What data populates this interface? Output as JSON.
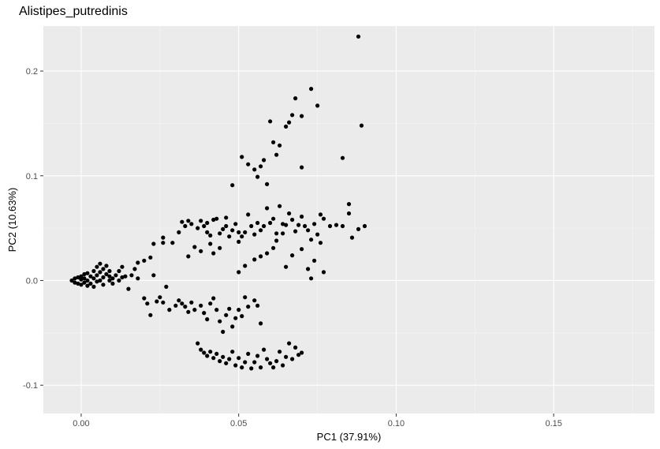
{
  "chart_data": {
    "type": "scatter",
    "title": "Alistipes_putredinis",
    "xlabel": "PC1 (37.91%)",
    "ylabel": "PC2 (10.63%)",
    "xlim": [
      -0.012,
      0.182
    ],
    "ylim": [
      -0.127,
      0.243
    ],
    "x_ticks": [
      0.0,
      0.05,
      0.1,
      0.15
    ],
    "x_tick_labels": [
      "0.00",
      "0.05",
      "0.10",
      "0.15"
    ],
    "y_ticks": [
      -0.1,
      0.0,
      0.1,
      0.2
    ],
    "y_tick_labels": [
      "-0.1",
      "0.0",
      "0.1",
      "0.2"
    ],
    "grid": true,
    "colors": {
      "panel": "#ebebeb",
      "grid_major": "#ffffff",
      "grid_minor": "#f5f5f5",
      "points": "#000000"
    },
    "series": [
      {
        "values": [
          [
            -0.003,
            0.0
          ],
          [
            -0.002,
            0.002
          ],
          [
            -0.002,
            -0.002
          ],
          [
            -0.001,
            0.003
          ],
          [
            -0.001,
            -0.003
          ],
          [
            0.0,
            0.004
          ],
          [
            0.0,
            -0.004
          ],
          [
            0.0,
            0.001
          ],
          [
            0.001,
            0.006
          ],
          [
            0.001,
            -0.002
          ],
          [
            0.001,
            0.002
          ],
          [
            0.002,
            0.007
          ],
          [
            0.002,
            -0.005
          ],
          [
            0.002,
            0.0
          ],
          [
            0.003,
            0.004
          ],
          [
            0.003,
            -0.003
          ],
          [
            0.004,
            0.009
          ],
          [
            0.004,
            0.002
          ],
          [
            0.004,
            -0.006
          ],
          [
            0.005,
            0.013
          ],
          [
            0.005,
            0.005
          ],
          [
            0.005,
            -0.001
          ],
          [
            0.006,
            0.016
          ],
          [
            0.006,
            0.008
          ],
          [
            0.006,
            0.0
          ],
          [
            0.007,
            0.011
          ],
          [
            0.007,
            0.003
          ],
          [
            0.007,
            -0.004
          ],
          [
            0.008,
            0.014
          ],
          [
            0.008,
            0.006
          ],
          [
            0.009,
            0.004
          ],
          [
            0.009,
            0.009
          ],
          [
            0.009,
            0.0
          ],
          [
            0.01,
            -0.003
          ],
          [
            0.01,
            0.002
          ],
          [
            0.011,
            0.005
          ],
          [
            0.012,
            0.0
          ],
          [
            0.012,
            0.009
          ],
          [
            0.013,
            0.003
          ],
          [
            0.013,
            0.013
          ],
          [
            0.014,
            0.004
          ],
          [
            0.015,
            -0.008
          ],
          [
            0.016,
            0.005
          ],
          [
            0.017,
            0.011
          ],
          [
            0.018,
            0.017
          ],
          [
            0.018,
            0.002
          ],
          [
            0.02,
            0.019
          ],
          [
            0.022,
            0.022
          ],
          [
            0.023,
            0.035
          ],
          [
            0.023,
            0.005
          ],
          [
            0.026,
            0.036
          ],
          [
            0.026,
            0.041
          ],
          [
            0.027,
            -0.006
          ],
          [
            0.029,
            0.036
          ],
          [
            0.031,
            0.046
          ],
          [
            0.032,
            0.056
          ],
          [
            0.033,
            0.052
          ],
          [
            0.034,
            0.057
          ],
          [
            0.034,
            0.023
          ],
          [
            0.035,
            0.054
          ],
          [
            0.036,
            0.032
          ],
          [
            0.037,
            0.05
          ],
          [
            0.038,
            0.057
          ],
          [
            0.038,
            0.028
          ],
          [
            0.039,
            0.052
          ],
          [
            0.04,
            0.055
          ],
          [
            0.04,
            0.046
          ],
          [
            0.041,
            0.043
          ],
          [
            0.041,
            0.035
          ],
          [
            0.042,
            0.058
          ],
          [
            0.042,
            0.026
          ],
          [
            0.043,
            0.059
          ],
          [
            0.044,
            0.045
          ],
          [
            0.044,
            0.031
          ],
          [
            0.045,
            0.049
          ],
          [
            0.046,
            0.052
          ],
          [
            0.046,
            0.06
          ],
          [
            0.047,
            0.042
          ],
          [
            0.048,
            0.048
          ],
          [
            0.049,
            0.054
          ],
          [
            0.05,
            0.037
          ],
          [
            0.05,
            0.046
          ],
          [
            0.051,
            0.042
          ],
          [
            0.052,
            0.046
          ],
          [
            0.053,
            0.063
          ],
          [
            0.054,
            0.052
          ],
          [
            0.055,
            0.044
          ],
          [
            0.056,
            0.055
          ],
          [
            0.057,
            0.048
          ],
          [
            0.058,
            0.052
          ],
          [
            0.059,
            0.069
          ],
          [
            0.06,
            0.055
          ],
          [
            0.061,
            0.059
          ],
          [
            0.062,
            0.045
          ],
          [
            0.063,
            0.071
          ],
          [
            0.064,
            0.054
          ],
          [
            0.065,
            0.053
          ],
          [
            0.066,
            0.064
          ],
          [
            0.067,
            0.058
          ],
          [
            0.068,
            0.047
          ],
          [
            0.069,
            0.053
          ],
          [
            0.07,
            0.061
          ],
          [
            0.071,
            0.052
          ],
          [
            0.072,
            0.048
          ],
          [
            0.073,
            0.039
          ],
          [
            0.074,
            0.054
          ],
          [
            0.075,
            0.044
          ],
          [
            0.076,
            0.063
          ],
          [
            0.077,
            0.059
          ],
          [
            0.079,
            0.052
          ],
          [
            0.081,
            0.053
          ],
          [
            0.083,
            0.052
          ],
          [
            0.085,
            0.064
          ],
          [
            0.086,
            0.041
          ],
          [
            0.088,
            0.049
          ],
          [
            0.09,
            0.052
          ],
          [
            0.02,
            -0.017
          ],
          [
            0.021,
            -0.022
          ],
          [
            0.022,
            -0.033
          ],
          [
            0.024,
            -0.02
          ],
          [
            0.025,
            -0.016
          ],
          [
            0.026,
            -0.021
          ],
          [
            0.028,
            -0.028
          ],
          [
            0.03,
            -0.024
          ],
          [
            0.031,
            -0.019
          ],
          [
            0.032,
            -0.022
          ],
          [
            0.033,
            -0.025
          ],
          [
            0.034,
            -0.03
          ],
          [
            0.035,
            -0.021
          ],
          [
            0.036,
            -0.028
          ],
          [
            0.038,
            -0.024
          ],
          [
            0.039,
            -0.031
          ],
          [
            0.04,
            -0.037
          ],
          [
            0.041,
            -0.022
          ],
          [
            0.042,
            -0.017
          ],
          [
            0.043,
            -0.028
          ],
          [
            0.044,
            -0.039
          ],
          [
            0.045,
            -0.049
          ],
          [
            0.046,
            -0.033
          ],
          [
            0.047,
            -0.027
          ],
          [
            0.048,
            -0.044
          ],
          [
            0.049,
            -0.036
          ],
          [
            0.05,
            -0.028
          ],
          [
            0.051,
            -0.034
          ],
          [
            0.052,
            -0.016
          ],
          [
            0.053,
            -0.025
          ],
          [
            0.055,
            -0.019
          ],
          [
            0.056,
            -0.024
          ],
          [
            0.057,
            -0.041
          ],
          [
            0.037,
            -0.06
          ],
          [
            0.038,
            -0.066
          ],
          [
            0.039,
            -0.069
          ],
          [
            0.04,
            -0.072
          ],
          [
            0.041,
            -0.068
          ],
          [
            0.042,
            -0.074
          ],
          [
            0.043,
            -0.07
          ],
          [
            0.044,
            -0.077
          ],
          [
            0.045,
            -0.073
          ],
          [
            0.046,
            -0.079
          ],
          [
            0.047,
            -0.075
          ],
          [
            0.048,
            -0.068
          ],
          [
            0.049,
            -0.081
          ],
          [
            0.05,
            -0.074
          ],
          [
            0.051,
            -0.083
          ],
          [
            0.052,
            -0.078
          ],
          [
            0.053,
            -0.07
          ],
          [
            0.054,
            -0.084
          ],
          [
            0.055,
            -0.078
          ],
          [
            0.056,
            -0.072
          ],
          [
            0.057,
            -0.083
          ],
          [
            0.058,
            -0.066
          ],
          [
            0.059,
            -0.075
          ],
          [
            0.06,
            -0.079
          ],
          [
            0.061,
            -0.083
          ],
          [
            0.062,
            -0.077
          ],
          [
            0.063,
            -0.068
          ],
          [
            0.064,
            -0.081
          ],
          [
            0.065,
            -0.073
          ],
          [
            0.066,
            -0.06
          ],
          [
            0.067,
            -0.075
          ],
          [
            0.068,
            -0.064
          ],
          [
            0.069,
            -0.071
          ],
          [
            0.07,
            -0.069
          ],
          [
            0.05,
            0.008
          ],
          [
            0.052,
            0.014
          ],
          [
            0.055,
            0.02
          ],
          [
            0.057,
            0.023
          ],
          [
            0.059,
            0.026
          ],
          [
            0.061,
            0.031
          ],
          [
            0.062,
            0.038
          ],
          [
            0.064,
            0.045
          ],
          [
            0.065,
            0.013
          ],
          [
            0.067,
            0.024
          ],
          [
            0.07,
            0.03
          ],
          [
            0.072,
            0.011
          ],
          [
            0.073,
            0.002
          ],
          [
            0.074,
            0.019
          ],
          [
            0.076,
            0.036
          ],
          [
            0.077,
            0.008
          ],
          [
            0.048,
            0.091
          ],
          [
            0.051,
            0.118
          ],
          [
            0.053,
            0.111
          ],
          [
            0.055,
            0.106
          ],
          [
            0.056,
            0.099
          ],
          [
            0.057,
            0.109
          ],
          [
            0.058,
            0.115
          ],
          [
            0.059,
            0.092
          ],
          [
            0.06,
            0.152
          ],
          [
            0.061,
            0.132
          ],
          [
            0.062,
            0.12
          ],
          [
            0.063,
            0.129
          ],
          [
            0.065,
            0.147
          ],
          [
            0.066,
            0.151
          ],
          [
            0.067,
            0.158
          ],
          [
            0.068,
            0.174
          ],
          [
            0.07,
            0.157
          ],
          [
            0.07,
            0.108
          ],
          [
            0.073,
            0.183
          ],
          [
            0.075,
            0.167
          ],
          [
            0.083,
            0.117
          ],
          [
            0.085,
            0.073
          ],
          [
            0.088,
            0.233
          ],
          [
            0.089,
            0.148
          ]
        ]
      }
    ]
  }
}
